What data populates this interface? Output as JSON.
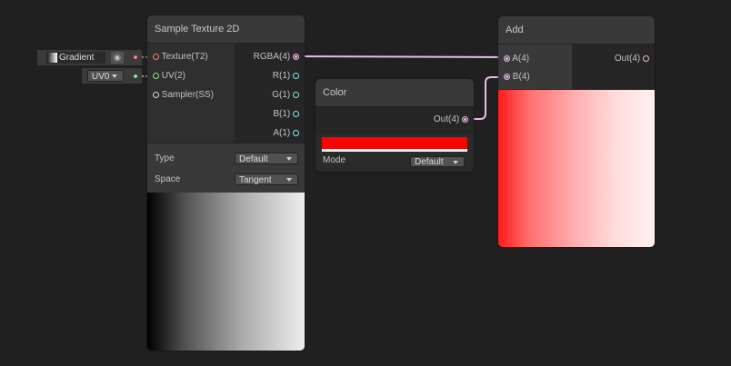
{
  "edges_colors": {
    "rgba": "#e8bde3",
    "texture": "#f08080",
    "uv": "#8ee08e",
    "float": "#84e4e7"
  },
  "inputs": {
    "gradient_label": "Gradient",
    "uv_value": "UV0"
  },
  "sample_texture": {
    "title": "Sample Texture 2D",
    "inputs": [
      "Texture(T2)",
      "UV(2)",
      "Sampler(SS)"
    ],
    "outputs": [
      "RGBA(4)",
      "R(1)",
      "G(1)",
      "B(1)",
      "A(1)"
    ],
    "type_label": "Type",
    "type_value": "Default",
    "space_label": "Space",
    "space_value": "Tangent"
  },
  "color": {
    "title": "Color",
    "output": "Out(4)",
    "swatch": "#ff0000",
    "mode_label": "Mode",
    "mode_value": "Default"
  },
  "add": {
    "title": "Add",
    "inputs": [
      "A(4)",
      "B(4)"
    ],
    "output": "Out(4)"
  }
}
